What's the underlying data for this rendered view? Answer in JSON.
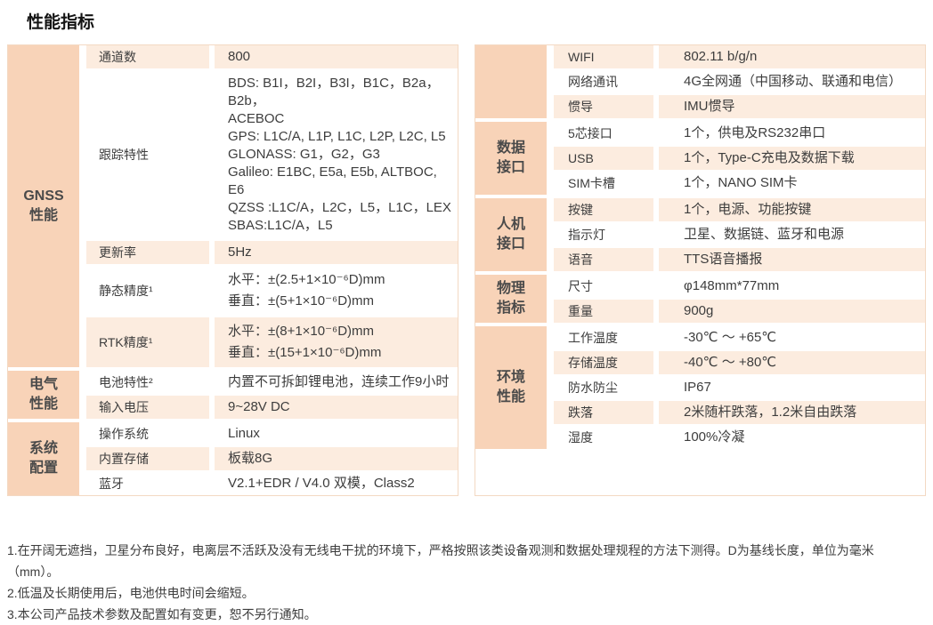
{
  "title": "性能指标",
  "colors": {
    "category_bg": "#f8d3b8",
    "row_alt_bg": "#fcecdf",
    "table_border": "#f3d9c3",
    "text": "#3d3d3d"
  },
  "left_table": {
    "groups": [
      {
        "category": "GNSS\n性能",
        "rows": [
          {
            "label": "通道数",
            "value": "800"
          },
          {
            "label": "跟踪特性",
            "value": "BDS: B1I，B2I，B3I，B1C，B2a，B2b，\nACEBOC\nGPS: L1C/A, L1P, L1C, L2P, L2C, L5\nGLONASS: G1，G2，G3\nGalileo: E1BC, E5a, E5b, ALTBOC, E6\nQZSS :L1C/A，L2C，L5，L1C，LEX\nSBAS:L1C/A，L5"
          },
          {
            "label": "更新率",
            "value": "5Hz"
          },
          {
            "label": "静态精度¹",
            "value": "水平：±(2.5+1×10⁻⁶D)mm\n垂直：±(5+1×10⁻⁶D)mm"
          },
          {
            "label": "RTK精度¹",
            "value": "水平：±(8+1×10⁻⁶D)mm\n垂直：±(15+1×10⁻⁶D)mm"
          }
        ]
      },
      {
        "category": "电气\n性能",
        "rows": [
          {
            "label": "电池特性²",
            "value": "内置不可拆卸锂电池，连续工作9小时"
          },
          {
            "label": "输入电压",
            "value": "9~28V DC"
          }
        ]
      },
      {
        "category": "系统\n配置",
        "rows": [
          {
            "label": "操作系统",
            "value": "Linux"
          },
          {
            "label": "内置存储",
            "value": "板载8G"
          },
          {
            "label": "蓝牙",
            "value": "V2.1+EDR / V4.0 双模，Class2"
          }
        ]
      }
    ]
  },
  "right_table": {
    "groups": [
      {
        "category": "",
        "rows": [
          {
            "label": "WIFI",
            "value": "802.11 b/g/n"
          },
          {
            "label": "网络通讯",
            "value": "4G全网通（中国移动、联通和电信）"
          },
          {
            "label": "惯导",
            "value": "IMU惯导"
          }
        ]
      },
      {
        "category": "数据\n接口",
        "rows": [
          {
            "label": "5芯接口",
            "value": "1个，供电及RS232串口"
          },
          {
            "label": "USB",
            "value": "1个，Type-C充电及数据下载"
          },
          {
            "label": "SIM卡槽",
            "value": "1个，NANO SIM卡"
          }
        ]
      },
      {
        "category": "人机\n接口",
        "rows": [
          {
            "label": "按键",
            "value": "1个，电源、功能按键"
          },
          {
            "label": "指示灯",
            "value": "卫星、数据链、蓝牙和电源"
          },
          {
            "label": "语音",
            "value": "TTS语音播报"
          }
        ]
      },
      {
        "category": "物理\n指标",
        "rows": [
          {
            "label": "尺寸",
            "value": "φ148mm*77mm"
          },
          {
            "label": "重量",
            "value": "900g"
          }
        ]
      },
      {
        "category": "环境\n性能",
        "rows": [
          {
            "label": "工作温度",
            "value": "-30℃ ～ +65℃"
          },
          {
            "label": "存储温度",
            "value": "-40℃ ～ +80℃"
          },
          {
            "label": "防水防尘",
            "value": "IP67"
          },
          {
            "label": "跌落",
            "value": "2米随杆跌落，1.2米自由跌落"
          },
          {
            "label": "湿度",
            "value": "100%冷凝"
          }
        ]
      }
    ]
  },
  "footnotes": [
    "1.在开阔无遮挡，卫星分布良好，电离层不活跃及没有无线电干扰的环境下，严格按照该类设备观测和数据处理规程的方法下测得。D为基线长度，单位为毫米（mm）。",
    "2.低温及长期使用后，电池供电时间会缩短。",
    "3.本公司产品技术参数及配置如有变更，恕不另行通知。"
  ]
}
